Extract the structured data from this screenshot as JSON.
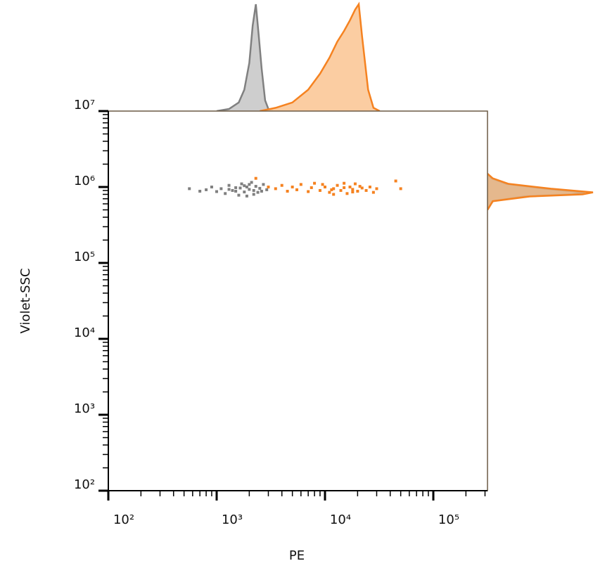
{
  "chart_data": {
    "type": "scatter",
    "x_label": "PE",
    "y_label": "Violet-SSC",
    "xscale": "log",
    "yscale": "log",
    "xlim": [
      100,
      316228
    ],
    "ylim": [
      100,
      10000000
    ],
    "xticks": [
      {
        "value": 100,
        "label": "10²"
      },
      {
        "value": 1000,
        "label": "10³"
      },
      {
        "value": 10000,
        "label": "10⁴"
      },
      {
        "value": 100000,
        "label": "10⁵"
      }
    ],
    "yticks": [
      {
        "value": 100,
        "label": "10²"
      },
      {
        "value": 1000,
        "label": "10³"
      },
      {
        "value": 10000,
        "label": "10⁴"
      },
      {
        "value": 100000,
        "label": "10⁵"
      },
      {
        "value": 1000000,
        "label": "10⁶"
      },
      {
        "value": 10000000,
        "label": "10⁷"
      }
    ],
    "minor_ticks": true,
    "series": [
      {
        "color": "#808080",
        "x": [
          560,
          700,
          800,
          900,
          1000,
          1100,
          1200,
          1300,
          1400,
          1500,
          1600,
          1700,
          1800,
          1900,
          2000,
          2100,
          2200,
          2300,
          2400,
          2500,
          2700,
          2900,
          1500,
          1800,
          2200,
          1300,
          2000,
          1650,
          2600,
          1900
        ],
        "y": [
          950000,
          880000,
          920000,
          1000000,
          870000,
          950000,
          820000,
          1050000,
          900000,
          980000,
          780000,
          1100000,
          860000,
          1000000,
          930000,
          1150000,
          900000,
          1020000,
          850000,
          960000,
          1080000,
          920000,
          880000,
          1040000,
          800000,
          930000,
          1080000,
          970000,
          880000,
          760000
        ]
      },
      {
        "color": "#f58220",
        "x": [
          2300,
          3000,
          3500,
          4000,
          4500,
          5000,
          5500,
          6000,
          7000,
          7500,
          8000,
          9000,
          10000,
          11000,
          12000,
          13000,
          14000,
          15000,
          16000,
          17000,
          18000,
          19000,
          20000,
          22000,
          24000,
          26000,
          28000,
          30000,
          45000,
          50000,
          12000,
          15000,
          18000,
          21000,
          9500,
          11500
        ],
        "y": [
          1300000,
          1000000,
          950000,
          1050000,
          880000,
          1000000,
          920000,
          1080000,
          870000,
          980000,
          1120000,
          900000,
          1000000,
          850000,
          950000,
          1050000,
          900000,
          980000,
          820000,
          1000000,
          930000,
          1100000,
          880000,
          970000,
          900000,
          1000000,
          850000,
          950000,
          1200000,
          950000,
          800000,
          1120000,
          860000,
          1020000,
          1080000,
          920000
        ]
      }
    ],
    "top_histogram": {
      "series": [
        {
          "color": "#808080",
          "fill": "#c9c9c9",
          "x": [
            1000,
            1300,
            1600,
            1800,
            2000,
            2150,
            2300,
            2450,
            2600,
            2800,
            3000,
            3300
          ],
          "values": [
            0,
            2,
            8,
            20,
            45,
            80,
            100,
            70,
            40,
            10,
            2,
            0
          ]
        },
        {
          "color": "#f58220",
          "fill": "#fbc898",
          "x": [
            2500,
            3500,
            5000,
            7000,
            9000,
            11000,
            13000,
            15000,
            17000,
            19000,
            20500,
            22000,
            25000,
            28000,
            32000
          ],
          "values": [
            0,
            3,
            8,
            20,
            35,
            50,
            65,
            75,
            85,
            95,
            100,
            70,
            20,
            3,
            0
          ]
        }
      ]
    },
    "right_histogram": {
      "series": [
        {
          "color": "#808080",
          "fill": "#c9c9c9",
          "y": [
            500000,
            650000,
            750000,
            800000,
            850000,
            950000,
            1100000,
            1300000,
            1500000
          ],
          "values": [
            0,
            5,
            35,
            80,
            92,
            55,
            18,
            4,
            0
          ]
        },
        {
          "color": "#f58220",
          "fill": "#e8b07a",
          "y": [
            500000,
            650000,
            750000,
            800000,
            850000,
            950000,
            1100000,
            1300000,
            1500000
          ],
          "values": [
            0,
            5,
            40,
            90,
            100,
            60,
            20,
            5,
            0
          ]
        }
      ]
    }
  }
}
